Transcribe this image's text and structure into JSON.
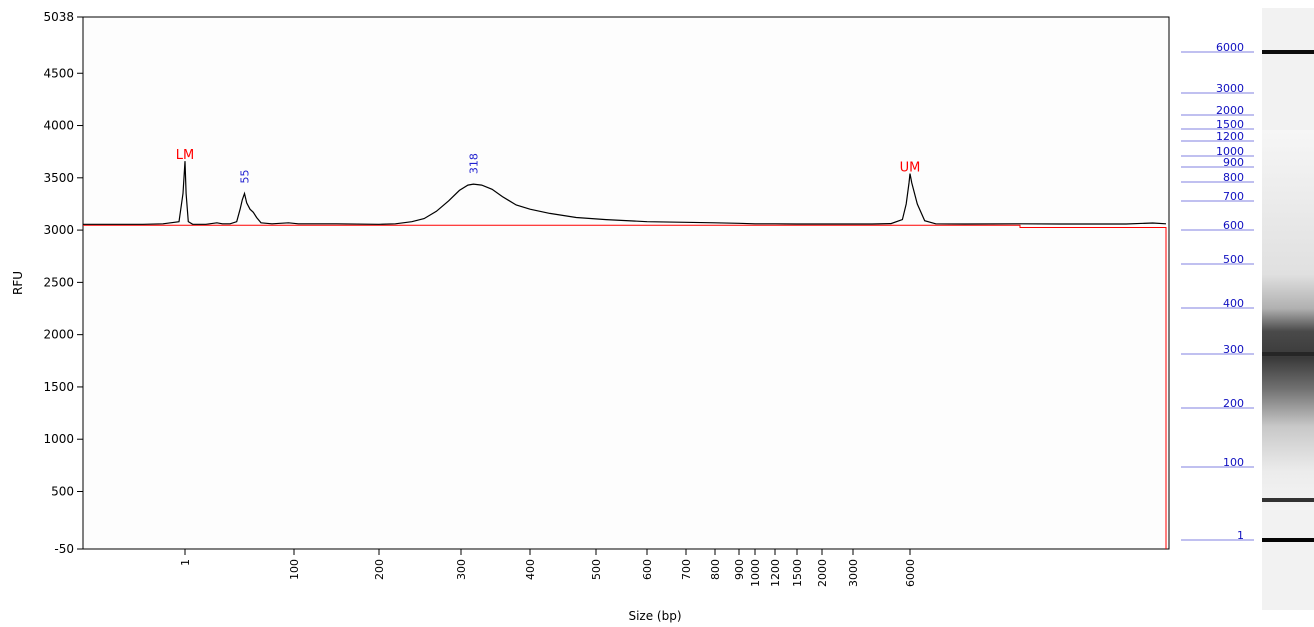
{
  "chart_data": {
    "type": "line",
    "title": "",
    "xlabel": "Size (bp)",
    "ylabel": "RFU",
    "ylim": [
      -50,
      5038
    ],
    "y_ticks": [
      5038,
      4500,
      4000,
      3500,
      3000,
      2500,
      2000,
      1500,
      1000,
      500,
      -50
    ],
    "x_ticks": [
      "1",
      "100",
      "200",
      "300",
      "400",
      "500",
      "600",
      "700",
      "800",
      "900",
      "1000",
      "1200",
      "1500",
      "2000",
      "3000",
      "6000"
    ],
    "x_tick_values": [
      1,
      100,
      200,
      300,
      400,
      500,
      600,
      700,
      800,
      900,
      1000,
      1200,
      1500,
      2000,
      3000,
      6000
    ],
    "trace_color": "#000000",
    "baseline_color": "#ff0000",
    "peak_label_color": "#2020d0",
    "marker_label_color": "#ff0000",
    "series": [
      {
        "points": [
          [
            -50,
            3055
          ],
          [
            -20,
            3055
          ],
          [
            -10,
            3060
          ],
          [
            -2,
            3080
          ],
          [
            0,
            3350
          ],
          [
            1,
            3660
          ],
          [
            2,
            3350
          ],
          [
            4,
            3080
          ],
          [
            8,
            3055
          ],
          [
            20,
            3055
          ],
          [
            30,
            3070
          ],
          [
            35,
            3060
          ],
          [
            42,
            3060
          ],
          [
            48,
            3080
          ],
          [
            51,
            3200
          ],
          [
            53,
            3290
          ],
          [
            55,
            3350
          ],
          [
            57,
            3260
          ],
          [
            60,
            3200
          ],
          [
            63,
            3170
          ],
          [
            66,
            3120
          ],
          [
            70,
            3070
          ],
          [
            80,
            3060
          ],
          [
            95,
            3070
          ],
          [
            105,
            3060
          ],
          [
            150,
            3060
          ],
          [
            200,
            3055
          ],
          [
            220,
            3060
          ],
          [
            240,
            3080
          ],
          [
            255,
            3110
          ],
          [
            270,
            3180
          ],
          [
            285,
            3280
          ],
          [
            298,
            3380
          ],
          [
            310,
            3430
          ],
          [
            318,
            3440
          ],
          [
            330,
            3430
          ],
          [
            345,
            3390
          ],
          [
            360,
            3320
          ],
          [
            380,
            3240
          ],
          [
            400,
            3200
          ],
          [
            430,
            3160
          ],
          [
            470,
            3120
          ],
          [
            520,
            3100
          ],
          [
            600,
            3080
          ],
          [
            700,
            3075
          ],
          [
            800,
            3070
          ],
          [
            900,
            3065
          ],
          [
            1000,
            3060
          ],
          [
            1200,
            3060
          ],
          [
            1500,
            3058
          ],
          [
            2000,
            3058
          ],
          [
            3000,
            3058
          ],
          [
            4000,
            3058
          ],
          [
            5000,
            3062
          ],
          [
            5600,
            3100
          ],
          [
            5800,
            3250
          ],
          [
            5950,
            3450
          ],
          [
            6000,
            3540
          ],
          [
            6050,
            3450
          ],
          [
            6200,
            3250
          ],
          [
            6400,
            3090
          ],
          [
            6700,
            3060
          ],
          [
            7500,
            3058
          ],
          [
            9000,
            3060
          ],
          [
            12000,
            3058
          ],
          [
            17000,
            3058
          ],
          [
            19000,
            3068
          ],
          [
            20000,
            3060
          ]
        ]
      }
    ],
    "baseline_points": [
      [
        -50,
        3047
      ],
      [
        9000,
        3047
      ],
      [
        9000,
        3025
      ],
      [
        20000,
        3025
      ],
      [
        20000,
        -50
      ]
    ],
    "peak_labels": [
      {
        "text": "LM",
        "x": 1,
        "y": 3660,
        "kind": "marker"
      },
      {
        "text": "55",
        "x": 55,
        "y": 3350,
        "kind": "peak"
      },
      {
        "text": "318",
        "x": 318,
        "y": 3440,
        "kind": "peak"
      },
      {
        "text": "UM",
        "x": 6000,
        "y": 3540,
        "kind": "marker"
      }
    ]
  },
  "gel_ladder": {
    "labels": [
      "6000",
      "3000",
      "2000",
      "1500",
      "1200",
      "1000",
      "900",
      "800",
      "700",
      "600",
      "500",
      "400",
      "300",
      "200",
      "100",
      "1"
    ]
  },
  "gel_lane": {
    "bands": [
      {
        "label": "6000",
        "intensity": 0.95
      },
      {
        "label": "300",
        "intensity": 0.85
      },
      {
        "label": "55",
        "intensity": 0.8
      },
      {
        "label": "1",
        "intensity": 0.98
      }
    ]
  }
}
